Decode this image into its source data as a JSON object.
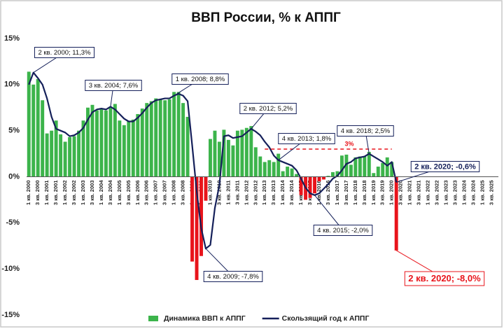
{
  "chart_data": {
    "type": "bar_line",
    "title": "ВВП России, % к АППГ",
    "categories": [
      "1 кв. 2000",
      null,
      "3 кв. 2000",
      null,
      "1 кв. 2001",
      null,
      "3 кв. 2001",
      null,
      "1 кв. 2002",
      null,
      "3 кв. 2002",
      null,
      "1 кв. 2003",
      null,
      "3 кв. 2003",
      null,
      "1 кв. 2004",
      null,
      "3 кв. 2004",
      null,
      "1 кв. 2005",
      null,
      "3 кв. 2005",
      null,
      "1 кв. 2006",
      null,
      "3 кв. 2006",
      null,
      "1 кв. 2007",
      null,
      "3 кв. 2007",
      null,
      "1 кв. 2008",
      null,
      "3 кв. 2008",
      null,
      "1 кв. 2009",
      null,
      "3 кв. 2009",
      null,
      "1 кв. 2010",
      null,
      "3 кв. 2010",
      null,
      "1 кв. 2011",
      null,
      "3 кв. 2011",
      null,
      "1 кв. 2012",
      null,
      "3 кв. 2012",
      null,
      "1 кв. 2013",
      null,
      "3 кв. 2013",
      null,
      "1 кв. 2014",
      null,
      "3 кв. 2014",
      null,
      "1 кв. 2015",
      null,
      "3 кв. 2015",
      null,
      "1 кв. 2016",
      null,
      "3 кв. 2016",
      null,
      "1 кв. 2017",
      null,
      "3 кв. 2017",
      null,
      "1 кв. 2018",
      null,
      "3 кв. 2018",
      null,
      "1 кв. 2019",
      null,
      "3 кв. 2019",
      null,
      "1 кв. 2020",
      null,
      "3 кв. 2020",
      null,
      "1 кв. 2021",
      null,
      "3 кв. 2021",
      null,
      "1 кв. 2022",
      null,
      "3 кв. 2022",
      null,
      "1 кв. 2023",
      null,
      "3 кв. 2023",
      null,
      "1 кв. 2024",
      null,
      "3 кв. 2024",
      null,
      "1 кв. 2025",
      null,
      "3 кв. 2025",
      null
    ],
    "series": [
      {
        "name": "Динамика ВВП к АППГ",
        "type": "bar",
        "color": "#3cb44b",
        "negative_color": "#e8141b",
        "values": [
          11.4,
          10.0,
          10.6,
          8.3,
          4.7,
          5.0,
          6.1,
          4.6,
          3.8,
          4.3,
          4.4,
          5.0,
          6.1,
          7.5,
          7.8,
          7.2,
          7.4,
          7.2,
          7.6,
          7.9,
          6.1,
          5.6,
          6.0,
          6.2,
          6.8,
          7.4,
          8.0,
          8.2,
          8.5,
          8.4,
          8.3,
          8.4,
          9.2,
          9.2,
          8.0,
          6.5,
          -9.2,
          -11.2,
          -8.6,
          -2.6,
          4.1,
          5.0,
          3.8,
          5.1,
          4.0,
          3.4,
          5.0,
          5.1,
          5.3,
          5.5,
          3.2,
          2.2,
          1.6,
          1.8,
          1.6,
          2.5,
          0.6,
          1.1,
          0.9,
          0.3,
          -2.0,
          -2.5,
          -2.3,
          -1.8,
          -0.5,
          -0.3,
          0.1,
          0.5,
          0.6,
          2.3,
          2.4,
          1.3,
          2.1,
          2.2,
          2.2,
          2.7,
          0.4,
          1.1,
          1.5,
          2.1,
          1.6,
          -8.0,
          null,
          null,
          null,
          null,
          null,
          null,
          null,
          null,
          null,
          null,
          null,
          null,
          null,
          null,
          null,
          null,
          null,
          null,
          null,
          null,
          null,
          null
        ]
      },
      {
        "name": "Скользящий год к АППГ",
        "type": "line",
        "color": "#15205a",
        "values": [
          10.0,
          11.3,
          10.7,
          10.0,
          8.5,
          6.5,
          5.2,
          5.0,
          4.8,
          4.4,
          4.5,
          4.8,
          5.3,
          6.2,
          7.0,
          7.3,
          7.4,
          7.3,
          7.6,
          7.3,
          6.8,
          6.3,
          6.0,
          6.0,
          6.4,
          6.9,
          7.5,
          8.0,
          8.3,
          8.4,
          8.5,
          8.5,
          8.8,
          9.0,
          8.8,
          8.2,
          3.4,
          -1.6,
          -5.6,
          -7.8,
          -7.4,
          -3.4,
          -0.9,
          4.4,
          4.5,
          4.2,
          4.3,
          4.4,
          4.8,
          5.2,
          4.9,
          4.5,
          3.8,
          3.2,
          2.3,
          1.8,
          1.6,
          1.4,
          1.2,
          0.7,
          -0.2,
          -1.2,
          -1.8,
          -2.0,
          -1.8,
          -1.3,
          -0.8,
          -0.2,
          0.1,
          0.7,
          1.4,
          1.6,
          2.0,
          2.1,
          2.2,
          2.5,
          2.2,
          1.9,
          1.6,
          1.2,
          1.6,
          -0.6,
          null,
          null,
          null,
          null,
          null,
          null,
          null,
          null,
          null,
          null,
          null,
          null,
          null,
          null,
          null,
          null,
          null,
          null,
          null,
          null,
          null,
          null
        ]
      }
    ],
    "ylim": [
      -15,
      15
    ],
    "yticks": [
      {
        "value": -15,
        "label": "-15%"
      },
      {
        "value": -10,
        "label": "-10%"
      },
      {
        "value": -5,
        "label": "-5%"
      },
      {
        "value": 0,
        "label": "0%"
      },
      {
        "value": 5,
        "label": "5%"
      },
      {
        "value": 10,
        "label": "10%"
      },
      {
        "value": 15,
        "label": "15%"
      }
    ],
    "grid": false,
    "legend": "bottom",
    "reference_line": {
      "value": 3,
      "label": "3%",
      "from": 52,
      "to": 80,
      "color": "#e8141b"
    },
    "annotations": [
      {
        "text": "2 кв. 2000; 11,3%",
        "series": 1,
        "index": 1
      },
      {
        "text": "3 кв. 2004; 7,6%",
        "series": 1,
        "index": 18
      },
      {
        "text": "1 кв. 2008; 8,8%",
        "series": 1,
        "index": 32
      },
      {
        "text": "4 кв. 2009; -7,8%",
        "series": 1,
        "index": 39
      },
      {
        "text": "2 кв. 2012; 5,2%",
        "series": 1,
        "index": 49
      },
      {
        "text": "4 кв. 2013; 1,8%",
        "series": 1,
        "index": 55
      },
      {
        "text": "4 кв. 2015; -2,0%",
        "series": 1,
        "index": 63
      },
      {
        "text": "4 кв. 2018; 2,5%",
        "series": 1,
        "index": 75
      },
      {
        "text": "2 кв. 2020; -0,6%",
        "series": 1,
        "index": 81
      },
      {
        "text": "2 кв. 2020; -8,0%",
        "series": 0,
        "index": 81
      }
    ]
  }
}
